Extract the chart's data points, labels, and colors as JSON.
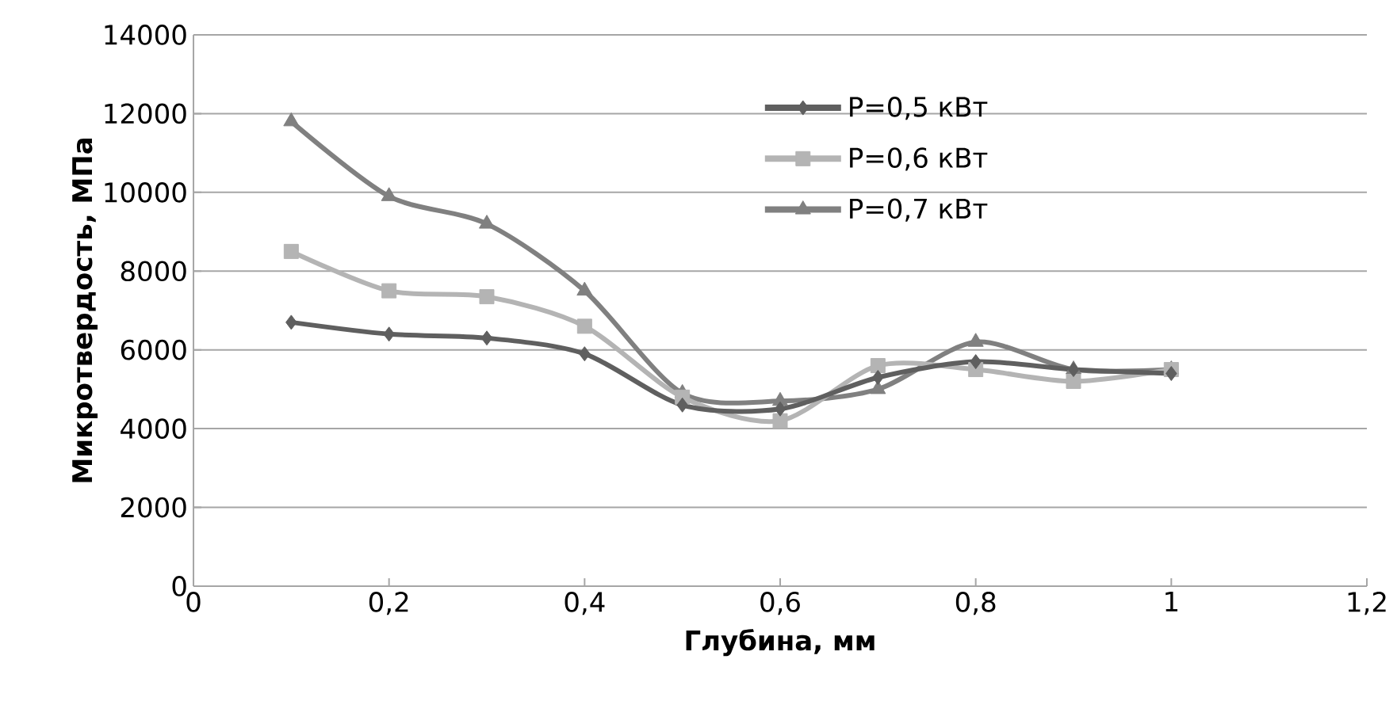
{
  "chart_data": {
    "type": "line",
    "xlabel": "Глубина, мм",
    "ylabel": "Микротвердость, МПа",
    "x": [
      0.1,
      0.2,
      0.3,
      0.4,
      0.5,
      0.6,
      0.7,
      0.8,
      0.9,
      1.0
    ],
    "series": [
      {
        "name": "P=0,5 кВт",
        "color": "#5f5f5f",
        "marker": "diamond",
        "values": [
          6700,
          6400,
          6300,
          5900,
          4600,
          4500,
          5300,
          5700,
          5500,
          5400
        ]
      },
      {
        "name": "P=0,6 кВт",
        "color": "#b4b4b4",
        "marker": "square",
        "values": [
          8500,
          7500,
          7350,
          6600,
          4800,
          4200,
          5600,
          5500,
          5200,
          5500
        ]
      },
      {
        "name": "P=0,7 кВт",
        "color": "#808080",
        "marker": "triangle",
        "values": [
          11800,
          9900,
          9200,
          7500,
          4900,
          4700,
          5000,
          6200,
          5500,
          5500
        ]
      }
    ],
    "xlim": [
      0,
      1.2
    ],
    "xticks": [
      0,
      {
        "value": 0.2,
        "label": "0,2"
      },
      {
        "value": 0.4,
        "label": "0,4"
      },
      {
        "value": 0.6,
        "label": "0,6"
      },
      {
        "value": 0.8,
        "label": "0,8"
      },
      1,
      {
        "value": 1.2,
        "label": "1,2"
      }
    ],
    "ylim": [
      0,
      14000
    ],
    "yticks": [
      0,
      2000,
      4000,
      6000,
      8000,
      10000,
      12000,
      14000
    ],
    "grid": "y",
    "legend": "top right",
    "line_style": "solid"
  }
}
